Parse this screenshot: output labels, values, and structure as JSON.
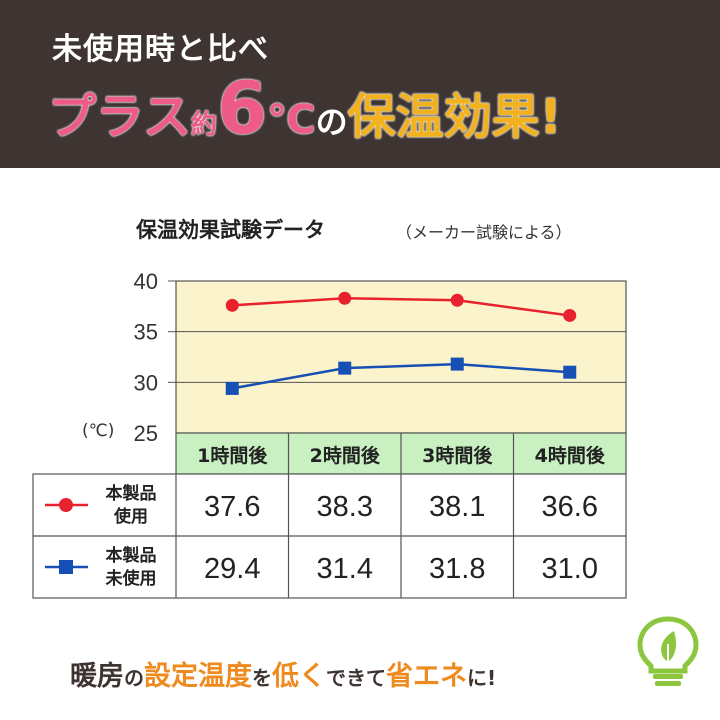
{
  "header": {
    "line1": "未使用時と比べ",
    "plus": "プラス",
    "approx": "約",
    "number": "6",
    "unit": "℃",
    "no": "の",
    "effect": "保温効果!"
  },
  "chart_data": {
    "type": "line",
    "title": "保温効果試験データ",
    "note": "（メーカー試験による）",
    "ylabel": "(℃)",
    "categories": [
      "1時間後",
      "2時間後",
      "3時間後",
      "4時間後"
    ],
    "ylim": [
      25,
      40
    ],
    "yticks": [
      25,
      30,
      35,
      40
    ],
    "grid": true,
    "series": [
      {
        "name": "本製品使用",
        "label_lines": [
          "本製品",
          "使用"
        ],
        "values": [
          37.6,
          38.3,
          38.1,
          36.6
        ],
        "display": [
          "37.6",
          "38.3",
          "38.1",
          "36.6"
        ],
        "color": "#e8222d",
        "marker": "circle"
      },
      {
        "name": "本製品未使用",
        "label_lines": [
          "本製品",
          "未使用"
        ],
        "values": [
          29.4,
          31.4,
          31.8,
          31.0
        ],
        "display": [
          "29.4",
          "31.4",
          "31.8",
          "31.0"
        ],
        "color": "#1650b4",
        "marker": "square"
      }
    ],
    "plot_background": "#fbf3cc",
    "header_background": "#c9f0c0"
  },
  "footer": {
    "p1": "暖房",
    "p2": "の",
    "p3": "設定温度",
    "p4": "を",
    "p5": "低く",
    "p6": "できて",
    "p7": "省エネ",
    "p8": "に!"
  },
  "icons": {
    "bulb": "lightbulb-leaf-icon",
    "bulb_color": "#8cc63f"
  }
}
